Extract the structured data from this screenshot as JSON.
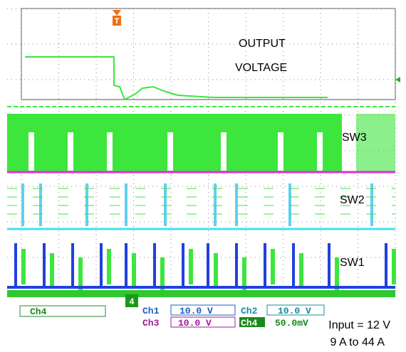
{
  "screen": {
    "labels": {
      "output": "OUTPUT",
      "voltage": "VOLTAGE",
      "sw3": "SW3",
      "sw2": "SW2",
      "sw1": "SW1"
    },
    "trigger_marker": "T",
    "channel_marker": "4"
  },
  "status_bar": {
    "left_channel": "Ch4",
    "rows": [
      [
        {
          "channel": "Ch1",
          "scale": "10.0 V"
        },
        {
          "channel": "Ch2",
          "scale": "10.0 V"
        }
      ],
      [
        {
          "channel": "Ch3",
          "scale": "10.0 V"
        },
        {
          "channel": "Ch4",
          "scale": "50.0mV"
        }
      ]
    ]
  },
  "notes": {
    "input": "Input = 12 V",
    "current": "9 A to 44 A"
  }
}
